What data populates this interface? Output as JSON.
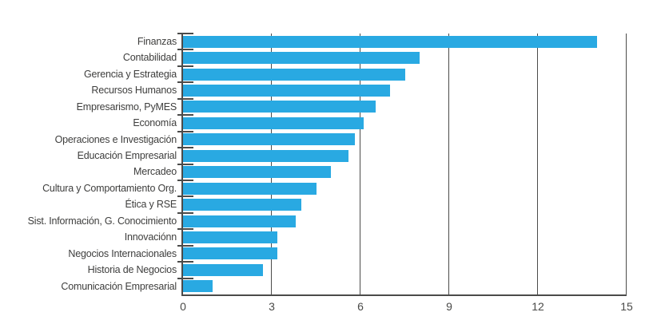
{
  "chart_data": {
    "type": "bar",
    "orientation": "horizontal",
    "title": "",
    "legend": "none",
    "grid": "vertical gridlines at x ticks, drawn behind bars",
    "categories": [
      "Finanzas",
      "Contabilidad",
      "Gerencia y Estrategia",
      "Recursos Humanos",
      "Empresarismo, PyMES",
      "Economía",
      "Operaciones e Investigación",
      "Educación Empresarial",
      "Mercadeo",
      "Cultura y Comportamiento Org.",
      "Ética y RSE",
      "Sist. Información, G. Conocimiento",
      "Innovaciónn",
      "Negocios Internacionales",
      "Historia de Negocios",
      "Comunicación Empresarial"
    ],
    "values": [
      14,
      8,
      7.5,
      7,
      6.5,
      6.1,
      5.8,
      5.6,
      5,
      4.5,
      4,
      3.8,
      3.2,
      3.2,
      2.7,
      1
    ],
    "xlim": [
      0,
      15
    ],
    "xticks": [
      0,
      3,
      6,
      9,
      12,
      15
    ],
    "bar_color": "#29a9e2",
    "axis_color": "#4b4b4a",
    "text_color": "#3e3e3d"
  }
}
